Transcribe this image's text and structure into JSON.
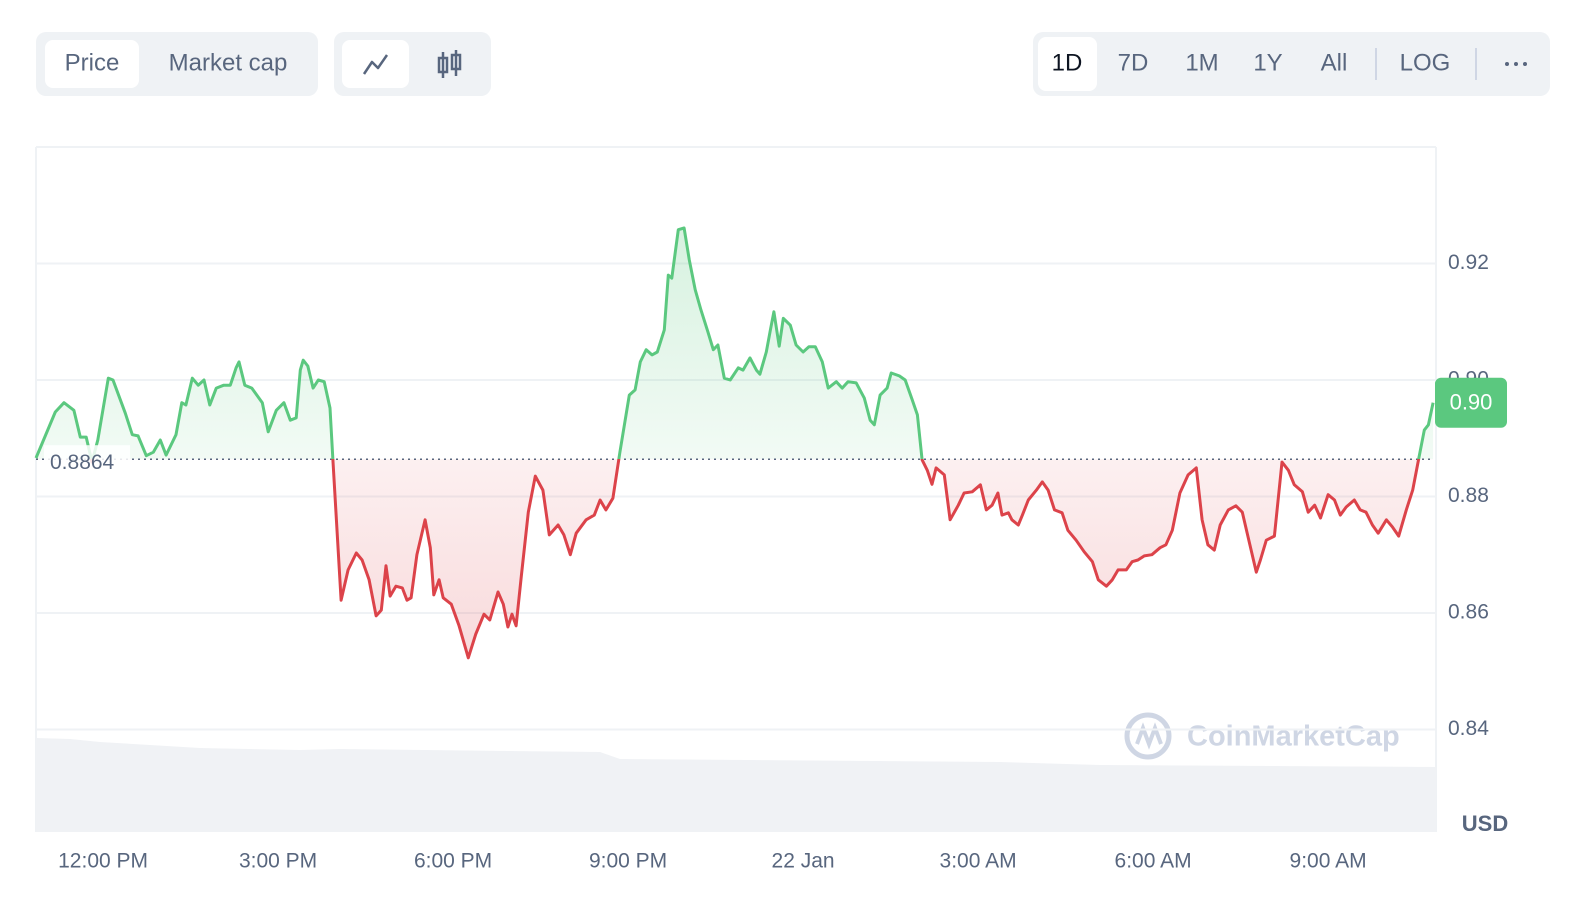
{
  "tabs": [
    "Price",
    "Market cap"
  ],
  "ranges": [
    "1D",
    "7D",
    "1M",
    "1Y",
    "All"
  ],
  "log_label": "LOG",
  "watermark": "CoinMarketCap",
  "chart_data": {
    "type": "line",
    "y_unit": "USD",
    "up_color": "#5bc87f",
    "down_color": "#dc434a",
    "grid": true,
    "reference_value": 0.8864,
    "current_price": {
      "value": 0.8961,
      "label": "0.90"
    },
    "xlim": [
      10.85,
      34.85
    ],
    "ylim": [
      0.8224,
      0.94
    ],
    "xticks": [
      {
        "value": 12,
        "label": "12:00 PM"
      },
      {
        "value": 15,
        "label": "3:00 PM"
      },
      {
        "value": 18,
        "label": "6:00 PM"
      },
      {
        "value": 21,
        "label": "9:00 PM"
      },
      {
        "value": 24,
        "label": "22 Jan"
      },
      {
        "value": 27,
        "label": "3:00 AM"
      },
      {
        "value": 30,
        "label": "6:00 AM"
      },
      {
        "value": 33,
        "label": "9:00 AM"
      }
    ],
    "yticks": [
      0.84,
      0.86,
      0.88,
      {
        "value": 0.9,
        "label": "0.90"
      },
      0.92
    ],
    "x": [
      10.85,
      11.18,
      11.33,
      11.5,
      11.61,
      11.71,
      11.81,
      11.91,
      12.09,
      12.17,
      12.38,
      12.5,
      12.6,
      12.74,
      12.86,
      12.98,
      13.08,
      13.25,
      13.35,
      13.42,
      13.53,
      13.63,
      13.73,
      13.83,
      13.94,
      14.07,
      14.18,
      14.28,
      14.33,
      14.43,
      14.55,
      14.73,
      14.83,
      14.97,
      15.1,
      15.21,
      15.31,
      15.38,
      15.43,
      15.51,
      15.6,
      15.69,
      15.79,
      15.89,
      15.94,
      16.08,
      16.2,
      16.34,
      16.44,
      16.56,
      16.68,
      16.77,
      16.85,
      16.92,
      17.02,
      17.13,
      17.21,
      17.28,
      17.38,
      17.52,
      17.61,
      17.67,
      17.76,
      17.83,
      17.97,
      18.1,
      18.26,
      18.39,
      18.53,
      18.63,
      18.77,
      18.86,
      18.94,
      19.01,
      19.08,
      19.17,
      19.29,
      19.41,
      19.54,
      19.65,
      19.8,
      19.9,
      20.01,
      20.11,
      20.28,
      20.42,
      20.52,
      20.62,
      20.74,
      20.86,
      21.02,
      21.12,
      21.21,
      21.31,
      21.41,
      21.5,
      21.62,
      21.69,
      21.75,
      21.86,
      21.96,
      22.05,
      22.15,
      22.25,
      22.37,
      22.46,
      22.54,
      22.65,
      22.75,
      22.89,
      22.97,
      23.09,
      23.2,
      23.26,
      23.37,
      23.44,
      23.5,
      23.59,
      23.66,
      23.78,
      23.88,
      24.0,
      24.1,
      24.21,
      24.33,
      24.43,
      24.57,
      24.67,
      24.77,
      24.91,
      25.05,
      25.15,
      25.22,
      25.32,
      25.44,
      25.51,
      25.65,
      25.75,
      25.87,
      25.96,
      26.04,
      26.13,
      26.21,
      26.28,
      26.42,
      26.52,
      26.66,
      26.76,
      26.9,
      27.04,
      27.14,
      27.24,
      27.34,
      27.41,
      27.52,
      27.58,
      27.69,
      27.76,
      27.86,
      28.0,
      28.1,
      28.2,
      28.31,
      28.44,
      28.54,
      28.68,
      28.82,
      28.96,
      29.06,
      29.2,
      29.3,
      29.4,
      29.54,
      29.64,
      29.74,
      29.85,
      29.98,
      30.12,
      30.22,
      30.33,
      30.46,
      30.6,
      30.74,
      30.84,
      30.94,
      31.05,
      31.15,
      31.29,
      31.42,
      31.53,
      31.66,
      31.77,
      31.84,
      31.94,
      32.08,
      32.21,
      32.32,
      32.42,
      32.56,
      32.66,
      32.77,
      32.87,
      33.0,
      33.11,
      33.21,
      33.31,
      33.45,
      33.55,
      33.65,
      33.76,
      33.86,
      34.0,
      34.1,
      34.21,
      34.34,
      34.45,
      34.55,
      34.65,
      34.72,
      34.8
    ],
    "values": [
      0.8866,
      0.8945,
      0.8961,
      0.8948,
      0.8902,
      0.8902,
      0.8859,
      0.8897,
      0.9003,
      0.9,
      0.8943,
      0.8906,
      0.8904,
      0.887,
      0.8876,
      0.8897,
      0.8871,
      0.8906,
      0.8961,
      0.8957,
      0.9003,
      0.8991,
      0.9,
      0.8957,
      0.8986,
      0.8991,
      0.8991,
      0.9021,
      0.9031,
      0.8991,
      0.8986,
      0.8961,
      0.8911,
      0.8948,
      0.8961,
      0.8931,
      0.8935,
      0.9017,
      0.9034,
      0.9024,
      0.8986,
      0.9,
      0.8997,
      0.8952,
      0.8863,
      0.8622,
      0.8674,
      0.8703,
      0.8691,
      0.8657,
      0.8595,
      0.8605,
      0.8681,
      0.8629,
      0.8646,
      0.8643,
      0.8622,
      0.8626,
      0.87,
      0.876,
      0.8712,
      0.8631,
      0.8657,
      0.8626,
      0.8615,
      0.8579,
      0.8523,
      0.8564,
      0.8598,
      0.8588,
      0.8636,
      0.8615,
      0.8576,
      0.8598,
      0.8578,
      0.8663,
      0.8773,
      0.8835,
      0.8811,
      0.8734,
      0.8751,
      0.8734,
      0.87,
      0.8737,
      0.876,
      0.8768,
      0.8794,
      0.8777,
      0.8797,
      0.8876,
      0.8974,
      0.8983,
      0.9031,
      0.9052,
      0.9043,
      0.9048,
      0.9086,
      0.918,
      0.9175,
      0.9258,
      0.9261,
      0.9206,
      0.9155,
      0.912,
      0.9082,
      0.9052,
      0.906,
      0.9003,
      0.9,
      0.9021,
      0.9017,
      0.9038,
      0.9017,
      0.901,
      0.9048,
      0.9086,
      0.9117,
      0.9058,
      0.9106,
      0.9094,
      0.906,
      0.9048,
      0.9057,
      0.9057,
      0.9031,
      0.8986,
      0.8997,
      0.8986,
      0.8997,
      0.8995,
      0.8969,
      0.8931,
      0.8923,
      0.8974,
      0.8986,
      0.9012,
      0.9007,
      0.9,
      0.8966,
      0.894,
      0.8863,
      0.8845,
      0.8821,
      0.8849,
      0.8837,
      0.876,
      0.8785,
      0.8806,
      0.8808,
      0.882,
      0.8777,
      0.8785,
      0.8806,
      0.8768,
      0.8772,
      0.876,
      0.8751,
      0.8768,
      0.8794,
      0.8811,
      0.8825,
      0.8811,
      0.8777,
      0.8772,
      0.8742,
      0.8725,
      0.8705,
      0.8688,
      0.8657,
      0.8646,
      0.8657,
      0.8674,
      0.8674,
      0.8688,
      0.8691,
      0.8698,
      0.87,
      0.8712,
      0.8717,
      0.8742,
      0.8806,
      0.8837,
      0.8849,
      0.876,
      0.8717,
      0.8708,
      0.8751,
      0.8777,
      0.8784,
      0.8773,
      0.8717,
      0.867,
      0.8691,
      0.8725,
      0.8732,
      0.8859,
      0.8845,
      0.882,
      0.8808,
      0.8773,
      0.8785,
      0.8763,
      0.8803,
      0.8794,
      0.8768,
      0.8782,
      0.8794,
      0.8777,
      0.8773,
      0.8751,
      0.8737,
      0.876,
      0.8748,
      0.8732,
      0.8777,
      0.8811,
      0.8863,
      0.8914,
      0.8923,
      0.8961
    ]
  }
}
